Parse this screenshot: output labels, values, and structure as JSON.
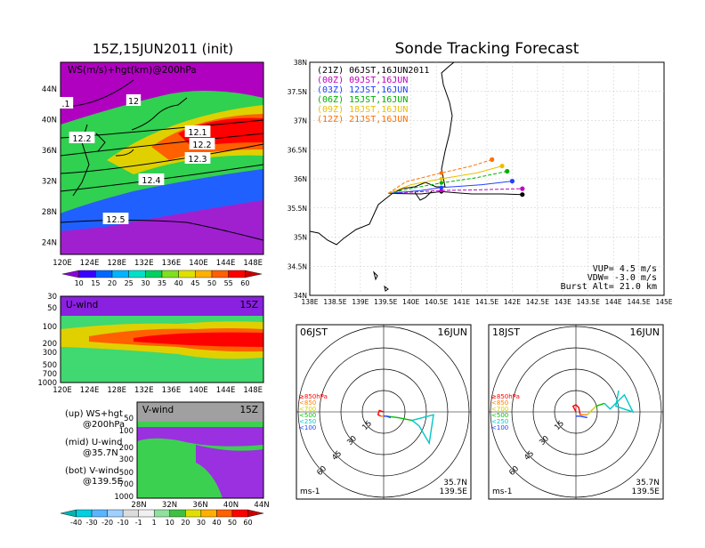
{
  "left": {
    "title": "15Z,15JUN2011 (init)",
    "upper": {
      "label": "WS(m/s)+hgt(km)@200hPa",
      "lat_ticks": [
        "44N",
        "40N",
        "36N",
        "32N",
        "28N",
        "24N"
      ],
      "lon_ticks": [
        "120E",
        "124E",
        "128E",
        "132E",
        "136E",
        "140E",
        "144E",
        "148E"
      ],
      "contour_labels": [
        ".1",
        "12",
        "12.2",
        "12.1",
        "12.2",
        "12.3",
        "12.4",
        "12.5"
      ],
      "colorbar_ticks": [
        "10",
        "15",
        "20",
        "25",
        "30",
        "35",
        "40",
        "45",
        "50",
        "55",
        "60"
      ],
      "colorbar_colors": [
        "#8a00d6",
        "#3a00ff",
        "#0068ff",
        "#00b4ff",
        "#00e0c8",
        "#00d060",
        "#7fe020",
        "#e0e000",
        "#ffb000",
        "#ff6000",
        "#ff0000",
        "#c80000"
      ]
    },
    "middle": {
      "label": "U-wind",
      "time": "15Z",
      "p_ticks": [
        "30",
        "50",
        "100",
        "200",
        "300",
        "500",
        "700",
        "1000"
      ],
      "lon_ticks": [
        "120E",
        "124E",
        "128E",
        "132E",
        "136E",
        "140E",
        "144E",
        "148E"
      ]
    },
    "lower": {
      "label": "V-wind",
      "time": "15Z",
      "p_ticks": [
        "50",
        "100",
        "200",
        "300",
        "500",
        "700",
        "1000"
      ],
      "lat_ticks": [
        "28N",
        "32N",
        "36N",
        "40N",
        "44N"
      ],
      "colorbar_ticks": [
        "-40",
        "-30",
        "-20",
        "-10",
        "-1",
        "1",
        "10",
        "20",
        "30",
        "40",
        "50",
        "60"
      ],
      "colorbar_colors": [
        "#00b4b4",
        "#00d0e0",
        "#5ab4ff",
        "#a0d0ff",
        "#dcdcdc",
        "#f0f0f0",
        "#90e0a0",
        "#40c040",
        "#e0e000",
        "#ffb000",
        "#ff6000",
        "#ff0000",
        "#c80000"
      ]
    },
    "legend": [
      {
        "line1": "(up) WS+hgt",
        "line2": "@200hPa"
      },
      {
        "line1": "(mid) U-wind",
        "line2": "@35.7N"
      },
      {
        "line1": "(bot) V-wind",
        "line2": "@139.5E"
      }
    ]
  },
  "right": {
    "title": "Sonde Tracking Forecast",
    "map": {
      "lat_ticks": [
        "38N",
        "37.5N",
        "37N",
        "36.5N",
        "36N",
        "35.5N",
        "35N",
        "34.5N",
        "34N"
      ],
      "lon_ticks": [
        "138E",
        "138.5E",
        "139E",
        "139.5E",
        "140E",
        "140.5E",
        "141E",
        "141.5E",
        "142E",
        "142.5E",
        "143E",
        "143.5E",
        "144E",
        "144.5E",
        "145E"
      ],
      "legend": [
        {
          "text": "(21Z)  06JST,16JUN2011",
          "color": "#000000"
        },
        {
          "text": "(00Z)  09JST,16JUN",
          "color": "#c000c0"
        },
        {
          "text": "(03Z)  12JST,16JUN",
          "color": "#2040ff"
        },
        {
          "text": "(06Z)  15JST,16JUN",
          "color": "#00b000"
        },
        {
          "text": "(09Z)  18JST,16JUN",
          "color": "#e8c000"
        },
        {
          "text": "(12Z)  21JST,16JUN",
          "color": "#ff7000"
        }
      ],
      "params": [
        "VUP= 4.5 m/s",
        "VDW= -3.0 m/s",
        "Burst Alt= 21.0 km"
      ]
    },
    "polar_left": {
      "time": "06JST",
      "date": "16JUN",
      "rings": [
        "15",
        "30",
        "45",
        "60"
      ],
      "unit": "ms-1",
      "loc1": "35.7N",
      "loc2": "139.5E"
    },
    "polar_right": {
      "time": "18JST",
      "date": "16JUN",
      "rings": [
        "15",
        "30",
        "45",
        "60"
      ],
      "unit": "ms-1",
      "loc1": "35.7N",
      "loc2": "139.5E"
    },
    "polar_legend": [
      {
        "text": "≥850hPa",
        "color": "#ff0000"
      },
      {
        "text": "<850",
        "color": "#ff8000"
      },
      {
        "text": "<700",
        "color": "#d0d000"
      },
      {
        "text": "<500",
        "color": "#00c000"
      },
      {
        "text": "<250",
        "color": "#00c8c8"
      },
      {
        "text": "<100",
        "color": "#2040ff"
      }
    ]
  },
  "chart_data": [
    {
      "type": "line",
      "title": "Sonde Tracking Forecast",
      "xlabel": "",
      "ylabel": "",
      "xlim": [
        138,
        145
      ],
      "ylim": [
        34,
        38
      ],
      "series": [
        {
          "name": "(21Z)  06JST,16JUN2011",
          "color": "#000000",
          "x": [
            139.55,
            140.2,
            140.6,
            141.2,
            141.8,
            142.2
          ],
          "y": [
            35.75,
            35.74,
            35.78,
            35.74,
            35.74,
            35.73
          ]
        },
        {
          "name": "(00Z)  09JST,16JUN",
          "color": "#c000c0",
          "x": [
            139.55,
            140.2,
            140.6,
            141.3,
            142.2
          ],
          "y": [
            35.75,
            35.78,
            35.8,
            35.81,
            35.83
          ]
        },
        {
          "name": "(03Z)  12JST,16JUN",
          "color": "#2040ff",
          "x": [
            139.55,
            140.2,
            140.6,
            141.4,
            142.0
          ],
          "y": [
            35.75,
            35.8,
            35.85,
            35.9,
            35.96
          ]
        },
        {
          "name": "(06Z)  15JST,16JUN",
          "color": "#00b000",
          "x": [
            139.55,
            140.1,
            140.6,
            141.3,
            141.9
          ],
          "y": [
            35.75,
            35.85,
            35.93,
            36.02,
            36.13
          ]
        },
        {
          "name": "(09Z)  18JST,16JUN",
          "color": "#e8c000",
          "x": [
            139.55,
            140.0,
            140.6,
            141.3,
            141.8
          ],
          "y": [
            35.75,
            35.9,
            36.0,
            36.1,
            36.22
          ]
        },
        {
          "name": "(12Z)  21JST,16JUN",
          "color": "#ff7000",
          "x": [
            139.55,
            139.9,
            140.6,
            141.2,
            141.6
          ],
          "y": [
            35.75,
            35.95,
            36.1,
            36.22,
            36.33
          ]
        }
      ]
    },
    {
      "type": "line",
      "title": "06JST 16JUN hodograph",
      "segments": [
        {
          "level": "≥850hPa",
          "color": "#ff0000",
          "u": [
            0,
            -3,
            -4,
            -2
          ],
          "v": [
            0,
            1,
            -2,
            -3
          ]
        },
        {
          "level": "<850",
          "color": "#ff8000",
          "u": [
            -2,
            2
          ],
          "v": [
            -3,
            -3
          ]
        },
        {
          "level": "<500",
          "color": "#00c000",
          "u": [
            2,
            10,
            20
          ],
          "v": [
            -3,
            -4,
            -6
          ]
        },
        {
          "level": "<250",
          "color": "#00c8c8",
          "u": [
            20,
            35,
            32,
            25,
            20
          ],
          "v": [
            -6,
            -2,
            -22,
            -10,
            -6
          ]
        },
        {
          "level": "<100",
          "color": "#2040ff",
          "u": [
            5,
            2,
            0
          ],
          "v": [
            -4,
            -3,
            -3
          ]
        }
      ]
    },
    {
      "type": "line",
      "title": "18JST 16JUN hodograph",
      "segments": [
        {
          "level": "≥850hPa",
          "color": "#ff0000",
          "u": [
            0,
            -2,
            0,
            2,
            3
          ],
          "v": [
            0,
            4,
            5,
            3,
            -2
          ]
        },
        {
          "level": "<850",
          "color": "#ff8000",
          "u": [
            3,
            8
          ],
          "v": [
            -2,
            -2
          ]
        },
        {
          "level": "<700",
          "color": "#d0d000",
          "u": [
            8,
            14
          ],
          "v": [
            -2,
            4
          ]
        },
        {
          "level": "<500",
          "color": "#00c000",
          "u": [
            14,
            20
          ],
          "v": [
            4,
            6
          ]
        },
        {
          "level": "<250",
          "color": "#00c8c8",
          "u": [
            20,
            24,
            34,
            40,
            28,
            30
          ],
          "v": [
            6,
            2,
            12,
            0,
            4,
            15
          ]
        },
        {
          "level": "<100",
          "color": "#2040ff",
          "u": [
            8,
            3,
            0
          ],
          "v": [
            -4,
            -3,
            -3
          ]
        }
      ]
    }
  ]
}
